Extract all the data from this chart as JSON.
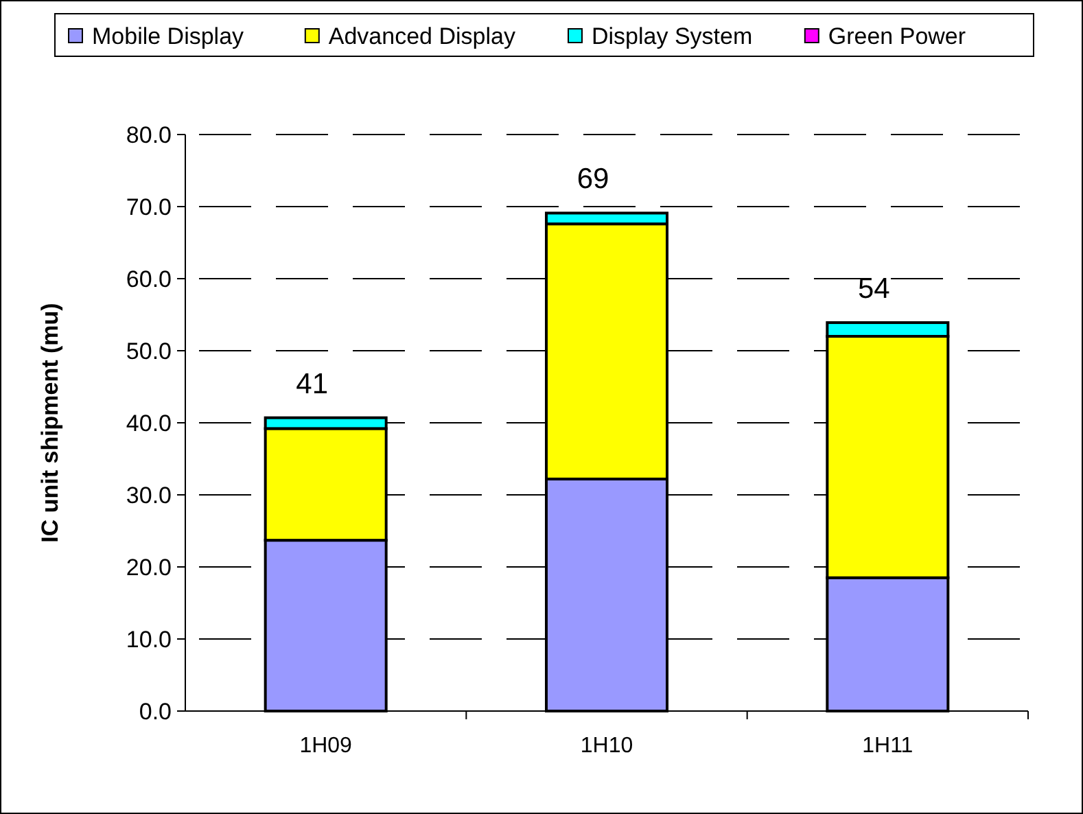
{
  "chart_data": {
    "type": "bar",
    "ylabel": "IC unit shipment (mu)",
    "categories": [
      "1H09",
      "1H10",
      "1H11"
    ],
    "stacked": true,
    "series": [
      {
        "name": "Mobile Display",
        "color": "#9999ff",
        "values": [
          23.7,
          32.2,
          18.5
        ]
      },
      {
        "name": "Advanced Display",
        "color": "#ffff00",
        "values": [
          15.5,
          35.4,
          33.5
        ]
      },
      {
        "name": "Display System",
        "color": "#00ffff",
        "values": [
          1.5,
          1.5,
          1.9
        ]
      },
      {
        "name": "Green Power",
        "color": "#ff00ff",
        "values": [
          0,
          0,
          0
        ]
      }
    ],
    "ylim": [
      0,
      80
    ],
    "yticks": [
      {
        "value": 0,
        "label": "0.0"
      },
      {
        "value": 10,
        "label": "10.0"
      },
      {
        "value": 20,
        "label": "20.0"
      },
      {
        "value": 30,
        "label": "30.0"
      },
      {
        "value": 40,
        "label": "40.0"
      },
      {
        "value": 50,
        "label": "50.0"
      },
      {
        "value": 60,
        "label": "60.0"
      },
      {
        "value": 70,
        "label": "70.0"
      },
      {
        "value": 80,
        "label": "80.0"
      }
    ],
    "totals": [
      "41",
      "69",
      "54"
    ],
    "grid": "y",
    "legend": "top"
  }
}
